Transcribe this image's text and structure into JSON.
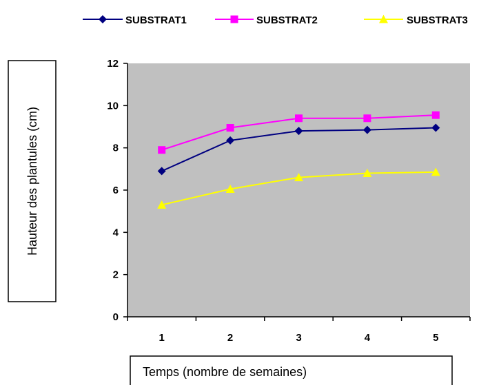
{
  "chart_data": {
    "type": "line",
    "title": "",
    "xlabel": "Temps (nombre de semaines)",
    "ylabel": "Hauteur des plantules (cm)",
    "x": [
      1,
      2,
      3,
      4,
      5
    ],
    "xlim": [
      0.5,
      5.5
    ],
    "ylim": [
      0,
      12
    ],
    "yticks": [
      0,
      2,
      4,
      6,
      8,
      10,
      12
    ],
    "grid": false,
    "plot_background": "#c0c0c0",
    "legend_position": "top",
    "series": [
      {
        "name": "SUBSTRAT1",
        "values": [
          6.9,
          8.35,
          8.8,
          8.85,
          8.95
        ],
        "color": "#000080",
        "marker": "diamond"
      },
      {
        "name": "SUBSTRAT2",
        "values": [
          7.9,
          8.95,
          9.4,
          9.4,
          9.55
        ],
        "color": "#ff00ff",
        "marker": "square"
      },
      {
        "name": "SUBSTRAT3",
        "values": [
          5.3,
          6.05,
          6.6,
          6.8,
          6.85
        ],
        "color": "#ffff00",
        "marker": "triangle"
      }
    ]
  }
}
